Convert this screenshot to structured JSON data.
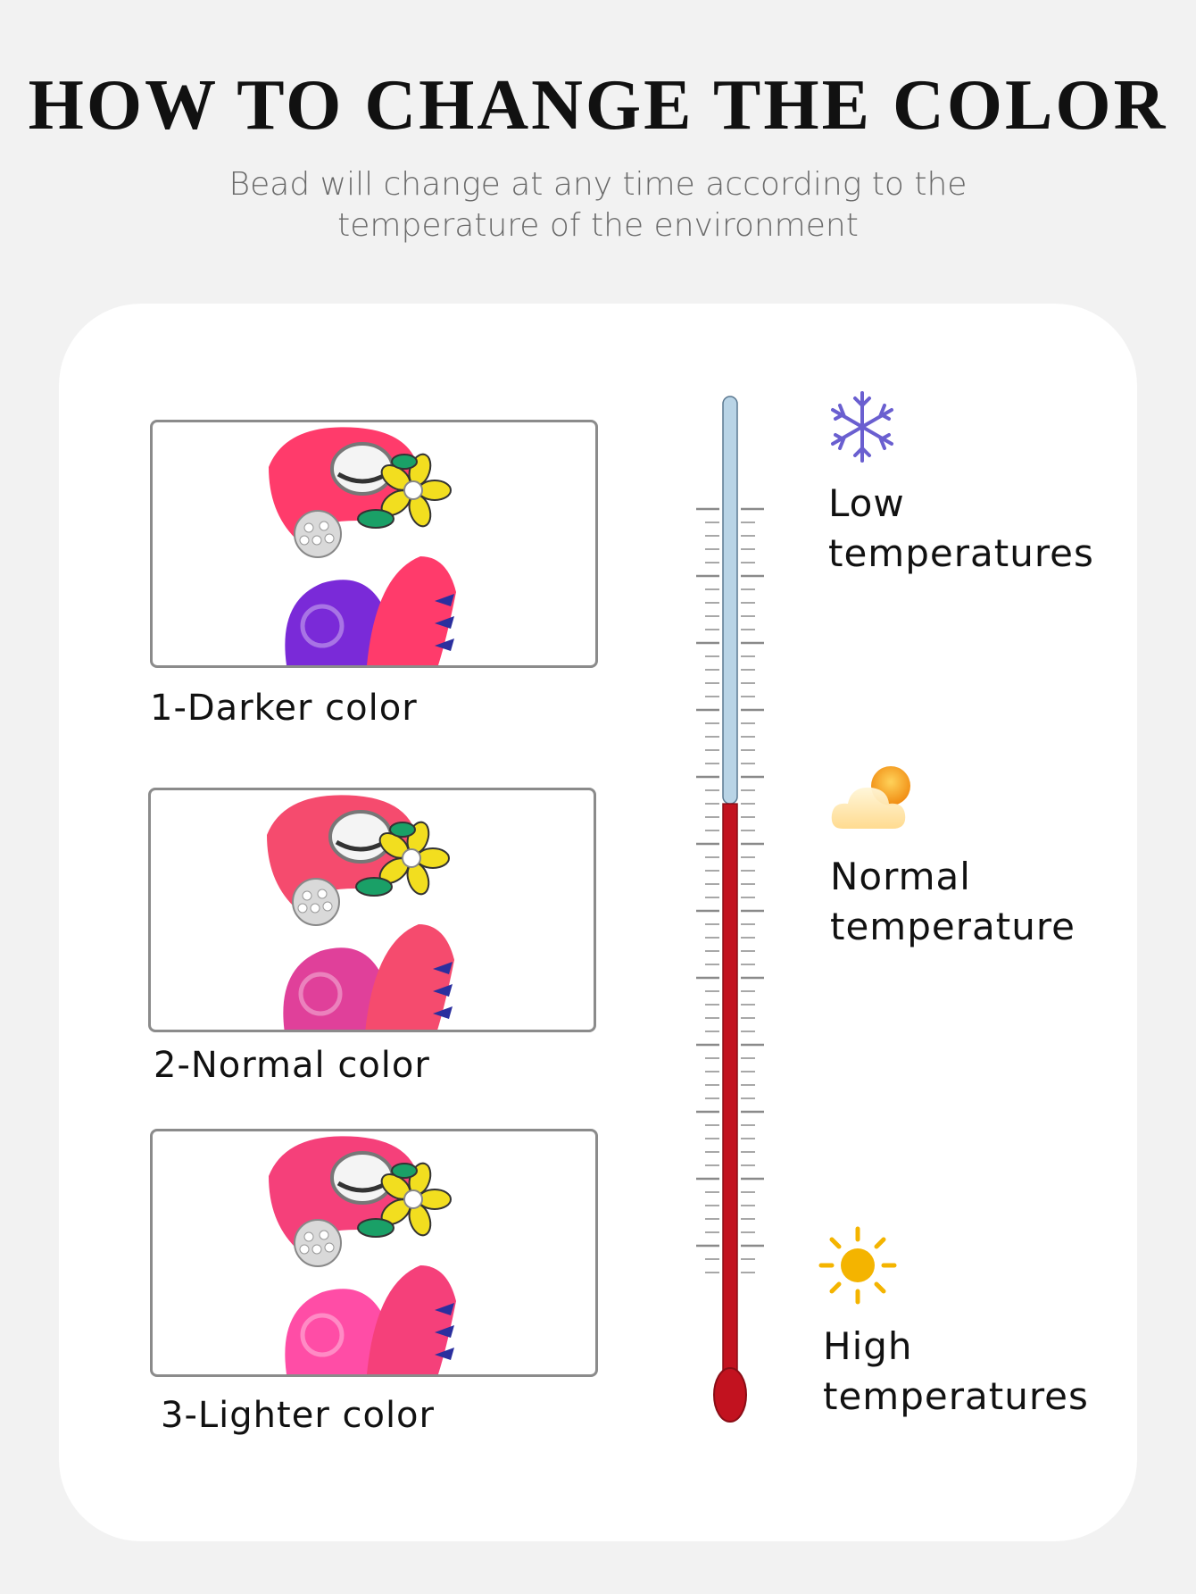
{
  "header": {
    "title": "HOW TO CHANGE THE COLOR",
    "subtitle_line1": "Bead will change at any time according to the",
    "subtitle_line2": "temperature of the environment"
  },
  "beads": [
    {
      "caption": "1-Darker color",
      "body_color": "#7a2ad8",
      "head_color": "#ff3b6b"
    },
    {
      "caption": "2-Normal color",
      "body_color": "#e0409a",
      "head_color": "#f54b6e"
    },
    {
      "caption": "3-Lighter color",
      "body_color": "#ff4da6",
      "head_color": "#f5407a"
    }
  ],
  "temperatures": [
    {
      "icon": "snowflake-icon",
      "line1": "Low",
      "line2": "temperatures",
      "color": "#6a5fd0"
    },
    {
      "icon": "cloud-sun-icon",
      "line1": "Normal",
      "line2": "temperature",
      "color": "#f6a41f"
    },
    {
      "icon": "sun-icon",
      "line1": "High",
      "line2": "temperatures",
      "color": "#f4b400"
    }
  ],
  "thermometer": {
    "cold_color": "#b9d4e6",
    "hot_color": "#c2121f",
    "level_fraction": 0.58
  }
}
